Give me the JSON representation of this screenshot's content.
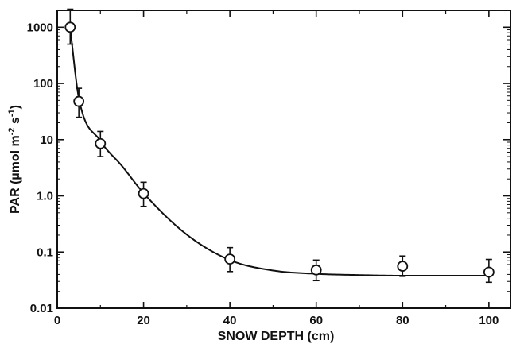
{
  "chart_data": {
    "type": "scatter",
    "title": "",
    "xlabel": "SNOW DEPTH  (cm)",
    "ylabel": "PAR (µmol m-2 s-1)",
    "ylabel_parts": {
      "prefix": "PAR (",
      "mu": "µ",
      "mol": "mol  m",
      "exp1": "-2",
      "s": " s",
      "exp2": "-1",
      "suffix": ")"
    },
    "x_scale": "linear",
    "y_scale": "log",
    "xlim": [
      0,
      105
    ],
    "ylim": [
      0.01,
      2000
    ],
    "x_ticks": [
      0,
      20,
      40,
      60,
      80,
      100
    ],
    "x_tick_labels": [
      "0",
      "20",
      "40",
      "60",
      "80",
      "100"
    ],
    "y_ticks": [
      0.01,
      0.1,
      1.0,
      10,
      100,
      1000
    ],
    "y_tick_labels": [
      "0.01",
      "0.1",
      "1.0",
      "10",
      "100",
      "1000"
    ],
    "grid": false,
    "legend": "none",
    "series": [
      {
        "marker": "open-circle",
        "x": [
          3,
          5,
          10,
          20,
          40,
          60,
          80,
          100
        ],
        "y": [
          1000,
          48,
          8.5,
          1.1,
          0.075,
          0.048,
          0.056,
          0.044
        ],
        "y_err_low": [
          500,
          25,
          5.0,
          0.65,
          0.045,
          0.031,
          0.037,
          0.029
        ],
        "y_err_high": [
          2100,
          82,
          14,
          1.75,
          0.12,
          0.072,
          0.085,
          0.074
        ]
      }
    ],
    "fit_curve": {
      "form": "exponential decay plus constant",
      "x": [
        3,
        5,
        10,
        15,
        20,
        30,
        40,
        50,
        60,
        70,
        80,
        90,
        100
      ],
      "y": [
        950,
        55,
        9.5,
        3.4,
        1.12,
        0.205,
        0.072,
        0.047,
        0.041,
        0.039,
        0.038,
        0.038,
        0.038
      ]
    }
  }
}
